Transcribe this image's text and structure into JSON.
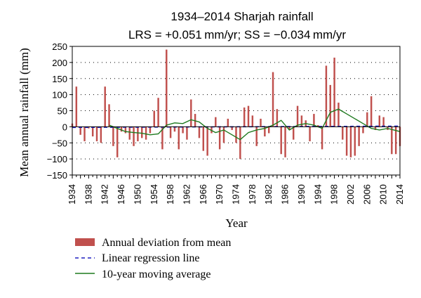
{
  "chart_data": {
    "type": "bar",
    "title": "1934–2014 Sharjah rainfall",
    "subtitle": "LRS = +0.051 mm/yr; SS = −0.034 mm/yr",
    "xlabel": "Year",
    "ylabel": "Mean annual rainfall (mm)",
    "ylim": [
      -150,
      250
    ],
    "yticks": [
      250,
      200,
      150,
      100,
      50,
      0,
      -50,
      -100,
      -150
    ],
    "ytick_labels": [
      "250",
      "200",
      "150",
      "100",
      "50",
      "0",
      "−50",
      "−100",
      "−150"
    ],
    "xlim": [
      1934,
      2014
    ],
    "xticks": [
      1934,
      1938,
      1942,
      1946,
      1950,
      1954,
      1958,
      1962,
      1966,
      1970,
      1974,
      1978,
      1982,
      1986,
      1990,
      1994,
      1998,
      2002,
      2006,
      2010,
      2014
    ],
    "xtick_labels": [
      "1934",
      "1938",
      "1942",
      "1946",
      "1950",
      "1954",
      "1958",
      "1962",
      "1966",
      "1970",
      "1974",
      "1978",
      "1982",
      "1986",
      "1990",
      "1994",
      "1998",
      "2002",
      "2006",
      "2010",
      "2014"
    ],
    "grid": "dotted horizontal",
    "legend_position": "below",
    "colors": {
      "bars": "#c0504d",
      "regression": "#1f1fbf",
      "moving_average": "#1f7a1f"
    },
    "series": [
      {
        "name": "Annual deviation from mean",
        "type": "bar",
        "x": [
          1934,
          1935,
          1936,
          1937,
          1938,
          1939,
          1940,
          1941,
          1942,
          1943,
          1944,
          1945,
          1946,
          1947,
          1948,
          1949,
          1950,
          1951,
          1952,
          1953,
          1954,
          1955,
          1956,
          1957,
          1958,
          1959,
          1960,
          1961,
          1962,
          1963,
          1964,
          1965,
          1966,
          1967,
          1968,
          1969,
          1970,
          1971,
          1972,
          1973,
          1974,
          1975,
          1976,
          1977,
          1978,
          1979,
          1980,
          1981,
          1982,
          1983,
          1984,
          1985,
          1986,
          1987,
          1988,
          1989,
          1990,
          1991,
          1992,
          1993,
          1994,
          1995,
          1996,
          1997,
          1998,
          1999,
          2000,
          2001,
          2002,
          2003,
          2004,
          2005,
          2006,
          2007,
          2008,
          2009,
          2010,
          2011,
          2012,
          2013,
          2014
        ],
        "values": [
          10,
          125,
          -25,
          -45,
          -5,
          -30,
          -45,
          -50,
          125,
          70,
          -60,
          -95,
          -15,
          -20,
          -40,
          -60,
          -45,
          -35,
          -40,
          -20,
          50,
          90,
          -70,
          240,
          -35,
          -15,
          -70,
          -20,
          -40,
          85,
          40,
          -35,
          -75,
          -90,
          -20,
          30,
          -70,
          -50,
          25,
          -10,
          -50,
          -100,
          60,
          65,
          35,
          -60,
          25,
          -30,
          -20,
          170,
          55,
          -85,
          -95,
          -10,
          -40,
          65,
          35,
          20,
          -45,
          40,
          5,
          -70,
          190,
          130,
          215,
          75,
          -40,
          -90,
          -95,
          -90,
          -60,
          -20,
          45,
          95,
          -10,
          35,
          30,
          -10,
          -85,
          -85,
          -60
        ]
      },
      {
        "name": "Linear regression line",
        "type": "line",
        "x": [
          1934,
          2014
        ],
        "values": [
          -2,
          2
        ]
      },
      {
        "name": "10-year moving average",
        "type": "line",
        "x": [
          1943,
          1945,
          1947,
          1949,
          1951,
          1953,
          1955,
          1957,
          1959,
          1961,
          1963,
          1965,
          1967,
          1969,
          1971,
          1973,
          1975,
          1977,
          1979,
          1981,
          1983,
          1985,
          1987,
          1989,
          1991,
          1993,
          1995,
          1997,
          1999,
          2001,
          2003,
          2005,
          2007,
          2009,
          2011,
          2014
        ],
        "values": [
          5,
          -5,
          -15,
          -18,
          -20,
          -25,
          -22,
          5,
          12,
          10,
          22,
          15,
          -5,
          -18,
          -10,
          -25,
          -40,
          -18,
          -10,
          -5,
          5,
          20,
          -10,
          5,
          10,
          5,
          -5,
          45,
          55,
          40,
          25,
          10,
          -5,
          -10,
          -5,
          -15
        ]
      }
    ]
  }
}
